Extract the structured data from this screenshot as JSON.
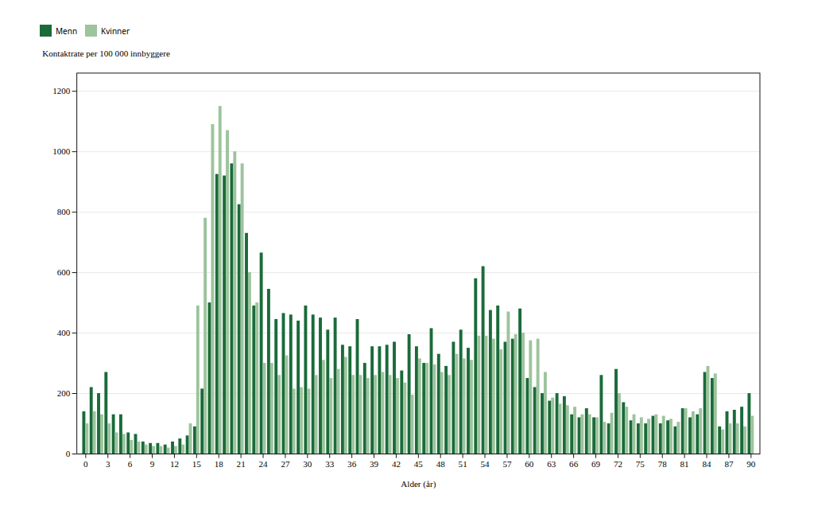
{
  "chart_data": {
    "type": "bar",
    "xlabel": "Alder (år)",
    "ylabel": "Kontaktrate per 100 000 innbyggere",
    "x": [
      0,
      1,
      2,
      3,
      4,
      5,
      6,
      7,
      8,
      9,
      10,
      11,
      12,
      13,
      14,
      15,
      16,
      17,
      18,
      19,
      20,
      21,
      22,
      23,
      24,
      25,
      26,
      27,
      28,
      29,
      30,
      31,
      32,
      33,
      34,
      35,
      36,
      37,
      38,
      39,
      40,
      41,
      42,
      43,
      44,
      45,
      46,
      47,
      48,
      49,
      50,
      51,
      52,
      53,
      54,
      55,
      56,
      57,
      58,
      59,
      60,
      61,
      62,
      63,
      64,
      65,
      66,
      67,
      68,
      69,
      70,
      71,
      72,
      73,
      74,
      75,
      76,
      77,
      78,
      79,
      80,
      81,
      82,
      83,
      84,
      85,
      86,
      87,
      88,
      89,
      90
    ],
    "series": [
      {
        "name": "Menn",
        "color": "#1a6b3a",
        "values": [
          140,
          220,
          200,
          270,
          130,
          130,
          70,
          65,
          40,
          35,
          35,
          30,
          40,
          50,
          60,
          90,
          215,
          500,
          925,
          920,
          960,
          825,
          730,
          490,
          665,
          545,
          445,
          465,
          460,
          440,
          490,
          460,
          450,
          410,
          450,
          360,
          355,
          445,
          300,
          355,
          355,
          360,
          370,
          275,
          395,
          355,
          300,
          415,
          330,
          290,
          370,
          410,
          350,
          580,
          620,
          475,
          490,
          370,
          380,
          480,
          250,
          220,
          200,
          175,
          200,
          190,
          130,
          120,
          150,
          120,
          260,
          100,
          280,
          170,
          110,
          100,
          100,
          125,
          100,
          110,
          90,
          150,
          120,
          130,
          270,
          250,
          90,
          140,
          145,
          155,
          200
        ]
      },
      {
        "name": "Kvinner",
        "color": "#9dc49d",
        "values": [
          100,
          140,
          130,
          100,
          70,
          65,
          45,
          40,
          30,
          25,
          25,
          20,
          25,
          30,
          100,
          490,
          780,
          1090,
          1150,
          1070,
          1000,
          960,
          600,
          500,
          300,
          300,
          260,
          325,
          215,
          220,
          215,
          260,
          310,
          250,
          280,
          320,
          260,
          260,
          250,
          260,
          270,
          260,
          250,
          235,
          195,
          315,
          300,
          295,
          270,
          260,
          330,
          315,
          310,
          390,
          390,
          380,
          345,
          470,
          395,
          400,
          375,
          380,
          270,
          185,
          165,
          160,
          155,
          130,
          130,
          120,
          105,
          135,
          200,
          155,
          130,
          120,
          115,
          130,
          125,
          115,
          105,
          150,
          140,
          150,
          290,
          265,
          80,
          100,
          100,
          90,
          125
        ]
      }
    ],
    "xlim": [
      -1.2,
      91.2
    ],
    "xticks": [
      0,
      3,
      6,
      9,
      12,
      15,
      18,
      21,
      24,
      27,
      30,
      33,
      36,
      39,
      42,
      45,
      48,
      51,
      54,
      57,
      60,
      63,
      66,
      69,
      72,
      75,
      78,
      81,
      84,
      87,
      90
    ],
    "ylim": [
      0,
      1260
    ],
    "yticks": [
      0,
      200,
      400,
      600,
      800,
      1000,
      1200
    ],
    "grid": "y",
    "legend": "upper left"
  }
}
